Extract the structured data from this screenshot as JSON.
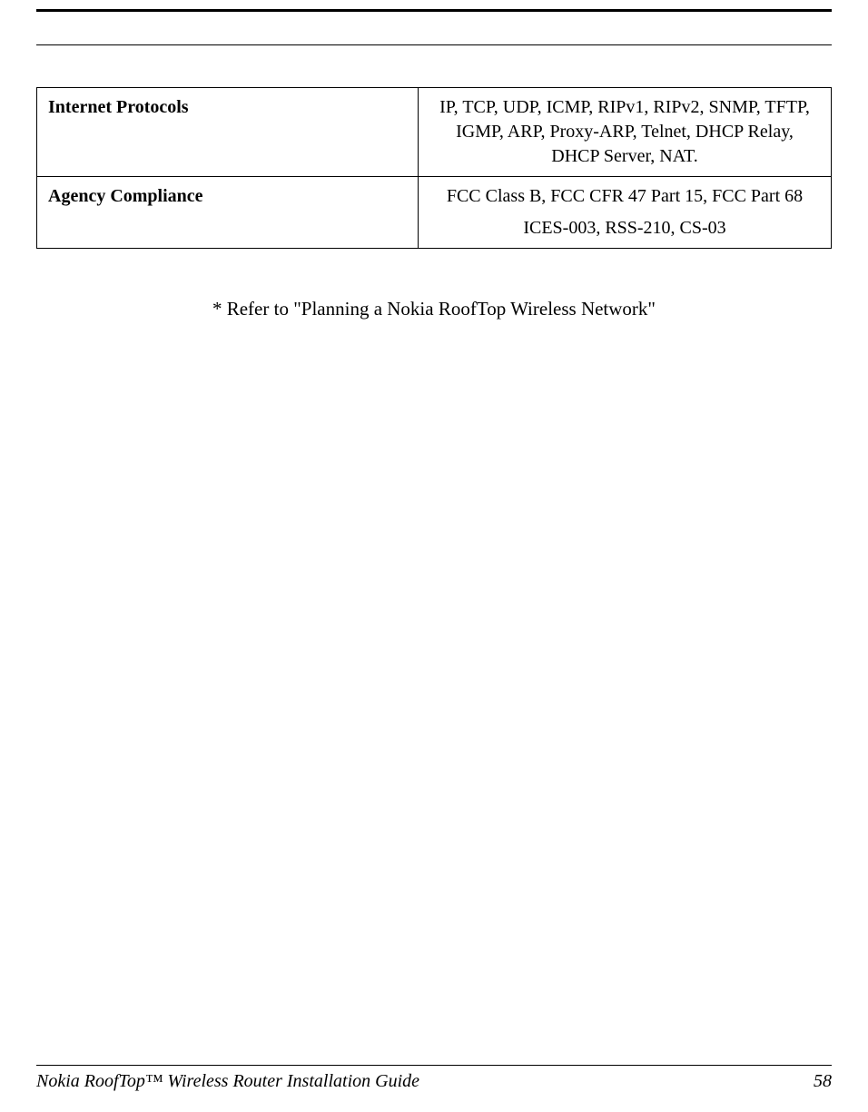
{
  "table": {
    "rows": [
      {
        "label": "Internet Protocols",
        "value": "IP, TCP, UDP, ICMP, RIPv1, RIPv2, SNMP, TFTP, IGMP, ARP, Proxy-ARP, Telnet, DHCP Relay, DHCP Server, NAT."
      },
      {
        "label": "Agency Compliance",
        "value_line1": "FCC Class B, FCC CFR 47 Part 15, FCC Part 68",
        "value_line2": "ICES-003, RSS-210, CS-03"
      }
    ]
  },
  "footnote": "* Refer to \"Planning a Nokia RoofTop Wireless Network\"",
  "footer": {
    "title": "Nokia RoofTop™ Wireless Router Installation Guide",
    "page": "58"
  },
  "colors": {
    "text": "#000000",
    "background": "#ffffff",
    "border": "#000000"
  },
  "fonts": {
    "body_family": "Times New Roman",
    "body_size_pt": 15,
    "footer_style": "italic"
  }
}
